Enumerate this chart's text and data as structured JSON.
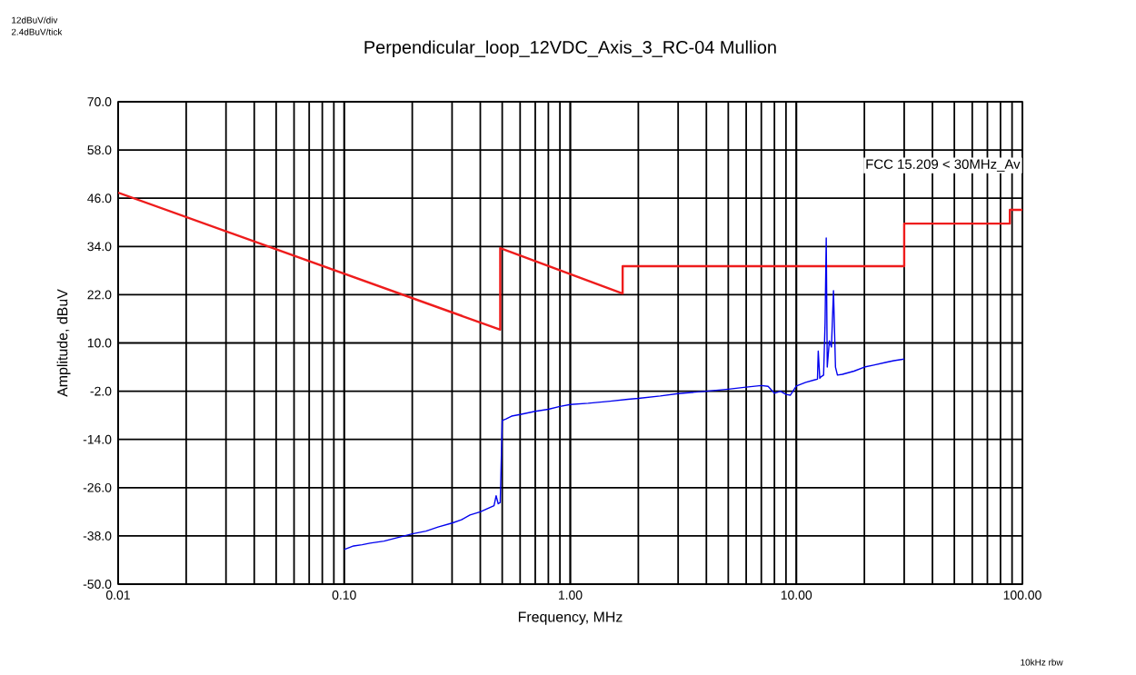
{
  "chart_data": {
    "type": "line",
    "title": "Perpendicular_loop_12VDC_Axis_3_RC-04 Mullion",
    "xlabel": "Frequency, MHz",
    "ylabel": "Amplitude,  dBuV",
    "annotations": [
      "12dBuV/div",
      "2.4dBuV/tick",
      "10kHz  rbw"
    ],
    "log": "x",
    "grid": true,
    "legend": false,
    "marker": "none",
    "line_style": "solid",
    "xlim": [
      0.01,
      100
    ],
    "xticks": [
      {
        "value": 0.01,
        "label": "0.01"
      },
      {
        "value": 0.1,
        "label": "0.10"
      },
      {
        "value": 1,
        "label": "1.00"
      },
      {
        "value": 10,
        "label": "10.00"
      },
      {
        "value": 100,
        "label": "100.00"
      }
    ],
    "ylim": [
      -50,
      70
    ],
    "yticks": [
      {
        "value": -50,
        "label": "-50.0"
      },
      {
        "value": -38,
        "label": "-38.0"
      },
      {
        "value": -26,
        "label": "-26.0"
      },
      {
        "value": -14,
        "label": "-14.0"
      },
      {
        "value": -2,
        "label": "-2.0"
      },
      {
        "value": 10,
        "label": "10.0"
      },
      {
        "value": 22,
        "label": "22.0"
      },
      {
        "value": 34,
        "label": "34.0"
      },
      {
        "value": 46,
        "label": "46.0"
      },
      {
        "value": 58,
        "label": "58.0"
      },
      {
        "value": 70,
        "label": "70.0"
      }
    ],
    "series": [
      {
        "name": "FCC 15.209 < 30MHz_Av",
        "color": "#ee1c1c",
        "x": [
          0.01,
          0.49,
          0.49,
          1.705,
          1.705,
          30,
          30,
          88,
          88,
          100
        ],
        "values": [
          47.4,
          13.3,
          33.6,
          22.3,
          29.1,
          29.1,
          39.7,
          39.7,
          43.1,
          43.1
        ]
      },
      {
        "color": "#0000ee",
        "x": [
          0.1,
          0.11,
          0.12,
          0.13,
          0.15,
          0.17,
          0.2,
          0.23,
          0.26,
          0.3,
          0.33,
          0.36,
          0.4,
          0.43,
          0.46,
          0.47,
          0.48,
          0.49,
          0.5,
          0.52,
          0.55,
          0.6,
          0.7,
          0.8,
          0.9,
          1.0,
          1.2,
          1.5,
          1.8,
          2.0,
          2.5,
          3.0,
          4.0,
          5.0,
          6.0,
          7.0,
          7.5,
          8.0,
          8.5,
          9.0,
          9.4,
          10.0,
          11.0,
          12.0,
          12.4,
          12.5,
          12.7,
          12.8,
          13.2,
          13.4,
          13.56,
          13.7,
          14.0,
          14.3,
          14.6,
          14.9,
          15.2,
          16.0,
          18.0,
          20.0,
          22.0,
          25.0,
          27.0,
          30.0
        ],
        "values": [
          -41.4,
          -40.5,
          -40.2,
          -39.8,
          -39.3,
          -38.5,
          -37.5,
          -36.8,
          -35.8,
          -34.8,
          -34.0,
          -32.8,
          -32.0,
          -31.2,
          -30.5,
          -28.0,
          -30.0,
          -29.7,
          -9.3,
          -8.9,
          -8.2,
          -7.8,
          -7.0,
          -6.5,
          -5.8,
          -5.3,
          -5.0,
          -4.5,
          -4.0,
          -3.8,
          -3.2,
          -2.6,
          -2.0,
          -1.5,
          -1.0,
          -0.6,
          -0.8,
          -2.5,
          -2.0,
          -2.8,
          -3.0,
          -0.7,
          0.2,
          0.8,
          1.0,
          8.0,
          1.2,
          1.5,
          2.0,
          15.0,
          36.1,
          4.0,
          10.5,
          9.0,
          23.0,
          4.0,
          2.0,
          2.2,
          3.0,
          4.0,
          4.5,
          5.2,
          5.6,
          6.0
        ]
      }
    ]
  }
}
